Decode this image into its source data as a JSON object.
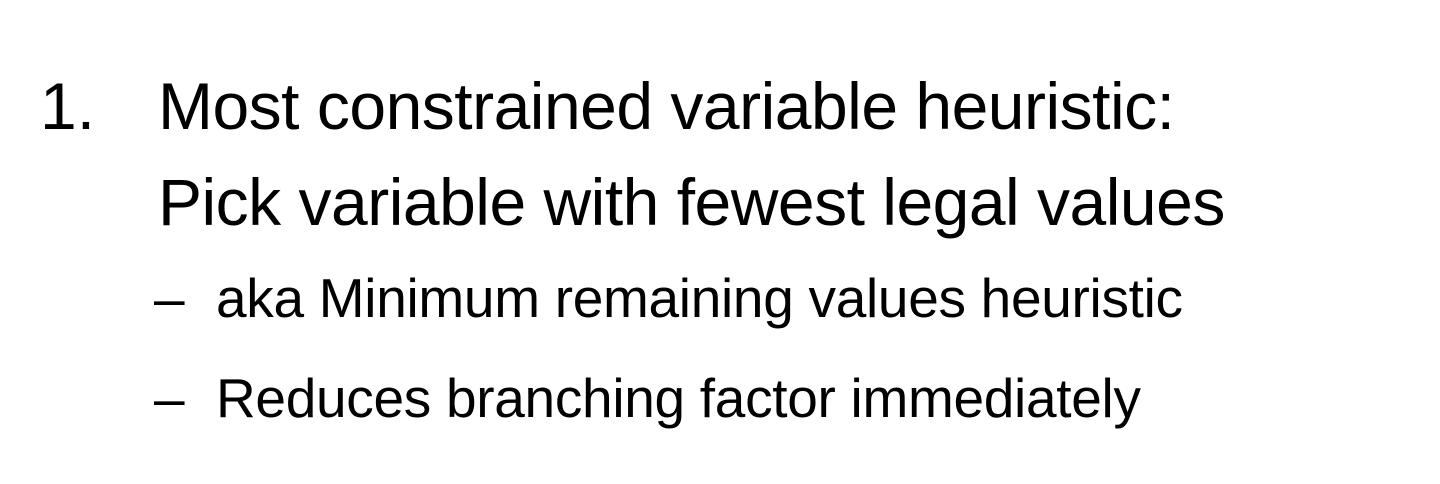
{
  "item": {
    "number": "1.",
    "lines": [
      "Most constrained variable heuristic:",
      "Pick variable with fewest legal values"
    ]
  },
  "subitems": [
    {
      "marker": "–",
      "text": "aka Minimum remaining values heuristic"
    },
    {
      "marker": "–",
      "text": "Reduces branching factor immediately"
    }
  ]
}
